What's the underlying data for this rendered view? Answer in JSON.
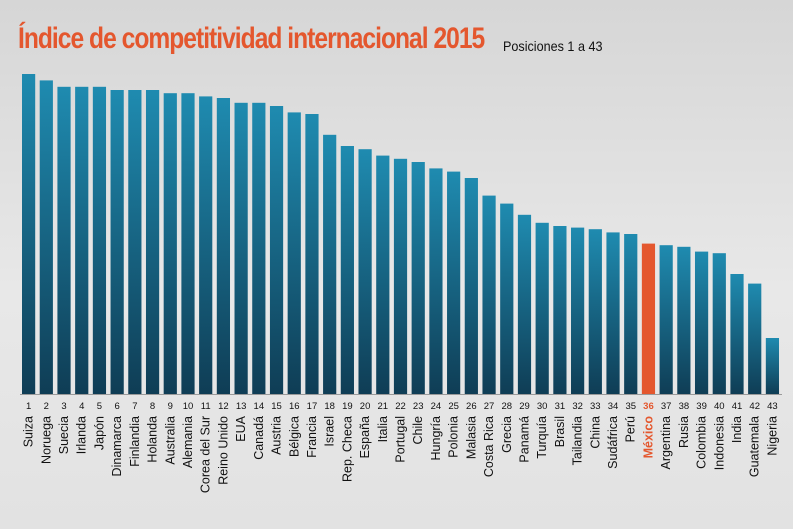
{
  "chart_data": {
    "type": "bar",
    "title": "Índice de competitividad internacional 2015",
    "subtitle": "Posiciones 1 a 43",
    "highlight": "México",
    "colors": {
      "bar_top": "#1f8bb0",
      "bar_bottom": "#0f3d55",
      "highlight": "#e4572e",
      "text": "#111111"
    },
    "categories": [
      "Suiza",
      "Noruega",
      "Suecia",
      "Irlanda",
      "Japón",
      "Dinamarca",
      "Finlandia",
      "Holanda",
      "Australia",
      "Alemania",
      "Corea del Sur",
      "Reino Unido",
      "EUA",
      "Canadá",
      "Austria",
      "Bélgica",
      "Francia",
      "Israel",
      "Rep. Checa",
      "España",
      "Italia",
      "Portugal",
      "Chile",
      "Hungría",
      "Polonia",
      "Malasia",
      "Costa Rica",
      "Grecia",
      "Panamá",
      "Turquía",
      "Brasil",
      "Tailandia",
      "China",
      "Sudáfrica",
      "Perú",
      "México",
      "Argentina",
      "Rusia",
      "Colombia",
      "Indonesia",
      "India",
      "Guatemala",
      "Nigeria"
    ],
    "positions": [
      1,
      2,
      3,
      4,
      5,
      6,
      7,
      8,
      9,
      10,
      11,
      12,
      13,
      14,
      15,
      16,
      17,
      18,
      19,
      20,
      21,
      22,
      23,
      24,
      25,
      26,
      27,
      28,
      29,
      30,
      31,
      32,
      33,
      34,
      35,
      36,
      37,
      38,
      39,
      40,
      41,
      42,
      43
    ],
    "values": [
      100,
      98,
      96,
      96,
      96,
      95,
      95,
      95,
      94,
      94,
      93,
      92.5,
      91,
      91,
      90,
      88,
      87.5,
      81,
      77.5,
      76.5,
      74.5,
      73.5,
      72.5,
      70.5,
      69.5,
      67.5,
      62,
      59.5,
      56,
      53.5,
      52.5,
      52,
      51.5,
      50.5,
      50,
      47,
      46.5,
      46,
      44.5,
      44,
      37.5,
      34.5,
      17.5
    ],
    "ylim": [
      0,
      100
    ],
    "grid": false,
    "legend": "none"
  }
}
